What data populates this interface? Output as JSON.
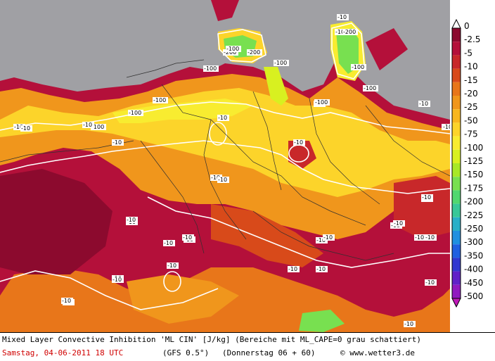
{
  "footer": {
    "title": "Mixed Layer Convective Inhibition 'ML CIN' [J/kg] (Bereiche mit ML_CAPE=0 grau schattiert)",
    "date": "Samstag, 04-06-2011  18 UTC",
    "model": "(GFS 0.5°)",
    "run": "(Donnerstag 06 + 60)",
    "copyright": "© www.wetter3.de"
  },
  "legend": {
    "labels": [
      "0",
      "-2.5",
      "-5",
      "-10",
      "-15",
      "-20",
      "-25",
      "-50",
      "-75",
      "-100",
      "-125",
      "-150",
      "-175",
      "-200",
      "-225",
      "-250",
      "-300",
      "-350",
      "-400",
      "-450",
      "-500"
    ],
    "colors": [
      "#8c0a2e",
      "#b4103a",
      "#c8282a",
      "#d84a1a",
      "#e8761a",
      "#f0961c",
      "#f8b61e",
      "#fcd42a",
      "#f8ec30",
      "#d8f020",
      "#a8e828",
      "#78e050",
      "#50d870",
      "#38c898",
      "#28b0c8",
      "#2090e0",
      "#2060e0",
      "#3038d0",
      "#6020c8",
      "#9018c0",
      "#c018b8"
    ]
  },
  "map_labels": [
    {
      "text": "-10"
    },
    {
      "text": "-100"
    },
    {
      "text": "-200"
    },
    {
      "text": "-100"
    },
    {
      "text": "-200"
    },
    {
      "text": "-200"
    },
    {
      "text": "-100"
    },
    {
      "text": "-100"
    },
    {
      "text": "-100"
    },
    {
      "text": "-10"
    },
    {
      "text": "-10"
    },
    {
      "text": "-100"
    },
    {
      "text": "-10"
    },
    {
      "text": "-100"
    },
    {
      "text": "-10"
    },
    {
      "text": "-100"
    },
    {
      "text": "-10"
    },
    {
      "text": "-100"
    },
    {
      "text": "-10"
    },
    {
      "text": "-10"
    },
    {
      "text": "-10"
    },
    {
      "text": "-10"
    },
    {
      "text": "-10"
    },
    {
      "text": "-10"
    },
    {
      "text": "-10"
    },
    {
      "text": "-10"
    },
    {
      "text": "-10"
    },
    {
      "text": "-10"
    },
    {
      "text": "-10"
    },
    {
      "text": "-10"
    },
    {
      "text": "-10"
    },
    {
      "text": "-10"
    },
    {
      "text": "-10"
    },
    {
      "text": "-10"
    },
    {
      "text": "-10"
    },
    {
      "text": "-10"
    },
    {
      "text": "-100"
    },
    {
      "text": "-10"
    },
    {
      "text": "-10"
    },
    {
      "text": "-10"
    },
    {
      "text": "-10"
    },
    {
      "text": "-10"
    },
    {
      "text": "-10"
    },
    {
      "text": "-10"
    },
    {
      "text": "-10"
    },
    {
      "text": "-10"
    },
    {
      "text": "-10"
    },
    {
      "text": "-10"
    }
  ]
}
